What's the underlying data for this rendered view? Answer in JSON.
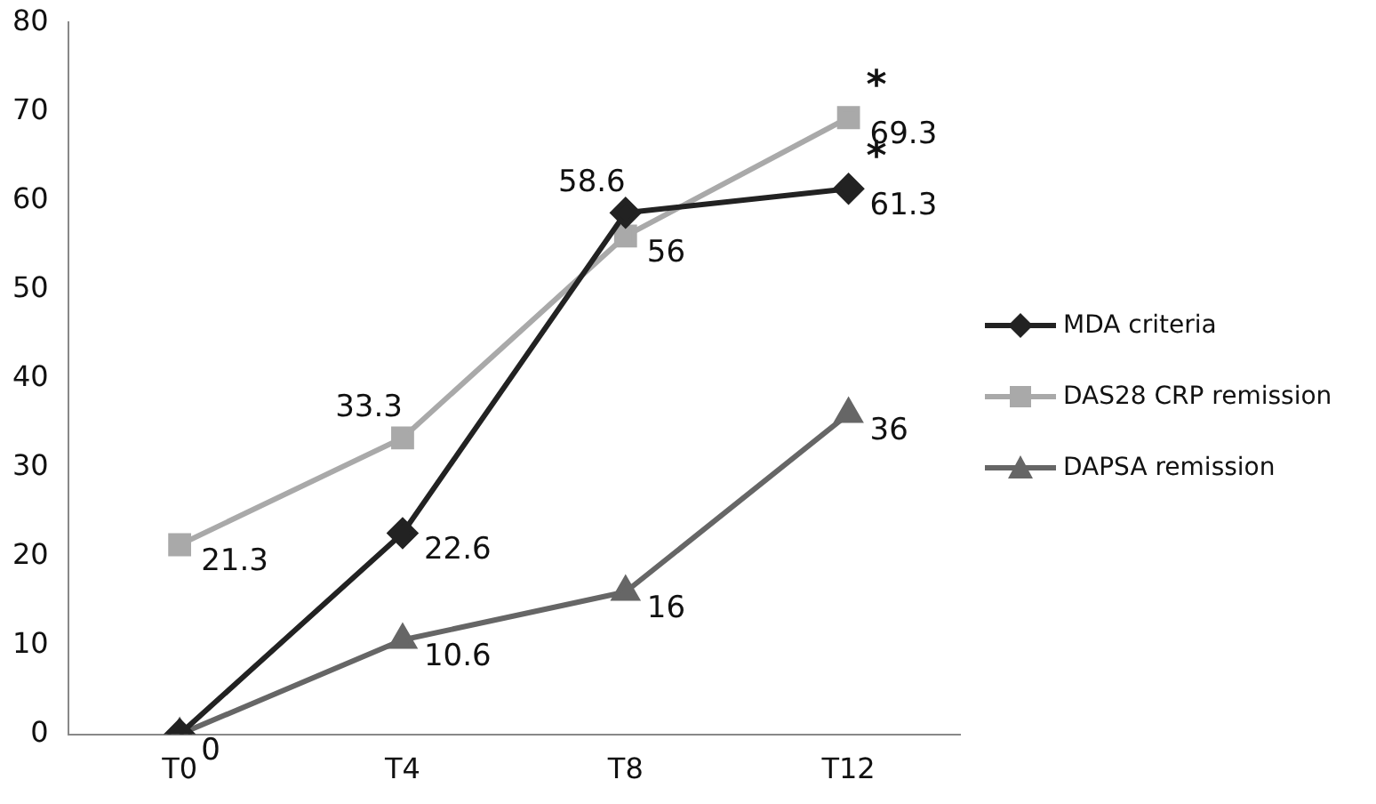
{
  "chart_data": {
    "type": "line",
    "categories": [
      "T0",
      "T4",
      "T8",
      "T12"
    ],
    "series": [
      {
        "name": "MDA criteria",
        "color": "#222222",
        "marker": "diamond",
        "values": [
          0,
          22.6,
          58.6,
          61.3
        ],
        "value_labels": [
          "0",
          "22.6",
          "58.6",
          "61.3"
        ]
      },
      {
        "name": "DAS28 CRP remission",
        "color": "#a9a9a9",
        "marker": "square",
        "values": [
          21.3,
          33.3,
          56,
          69.3
        ],
        "value_labels": [
          "21.3",
          "33.3",
          "56",
          "69.3"
        ]
      },
      {
        "name": "DAPSA remission",
        "color": "#666666",
        "marker": "triangle",
        "values": [
          0,
          10.6,
          16,
          36
        ],
        "value_labels": [
          null,
          "10.6",
          "16",
          "36"
        ]
      }
    ],
    "ylim": [
      0,
      80
    ],
    "yticks": [
      0,
      10,
      20,
      30,
      40,
      50,
      60,
      70,
      80
    ],
    "grid": false,
    "legend": "right",
    "annotations": [
      {
        "text": "*",
        "x": "T12",
        "y": 69.3
      },
      {
        "text": "*",
        "x": "T12",
        "y": 61.3
      }
    ]
  }
}
